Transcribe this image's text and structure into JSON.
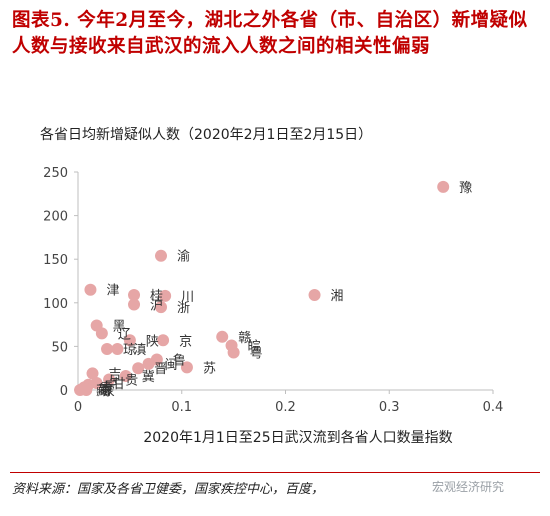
{
  "title": "图表5. 今年2月至今，湖北之外各省（市、自治区）新增疑似人数与接收来自武汉的流入人数之间的相关性偏弱",
  "source": "资料来源：国家及各省卫健委，国家疾控中心，百度，",
  "watermark": "宏观经济研究",
  "colors": {
    "title": "#c00000",
    "marker": "#e6a6a6",
    "axis": "#bfbfbf"
  },
  "chart_data": {
    "type": "scatter",
    "ylabel": "各省日均新增疑似人数（2020年2月1日至2月15日）",
    "xlabel": "2020年1月1日至25日武汉流到各省人口数量指数",
    "xlim": [
      0,
      0.4
    ],
    "ylim": [
      0,
      250
    ],
    "xticks": [
      "0",
      "0.1",
      "0.2",
      "0.3",
      "0.4"
    ],
    "yticks": [
      "0",
      "50",
      "100",
      "150",
      "200",
      "250"
    ],
    "grid": false,
    "points": [
      {
        "x": 0.352,
        "y": 233,
        "label": "豫"
      },
      {
        "x": 0.08,
        "y": 154,
        "label": "渝"
      },
      {
        "x": 0.228,
        "y": 109,
        "label": "湘"
      },
      {
        "x": 0.012,
        "y": 115,
        "label": "津"
      },
      {
        "x": 0.054,
        "y": 109,
        "label": "桂"
      },
      {
        "x": 0.084,
        "y": 108,
        "label": "川"
      },
      {
        "x": 0.054,
        "y": 98,
        "label": "沪"
      },
      {
        "x": 0.08,
        "y": 95,
        "label": "浙"
      },
      {
        "x": 0.018,
        "y": 74,
        "label": "黑"
      },
      {
        "x": 0.023,
        "y": 65,
        "label": "辽"
      },
      {
        "x": 0.05,
        "y": 57,
        "label": "陕"
      },
      {
        "x": 0.082,
        "y": 57,
        "label": "京"
      },
      {
        "x": 0.139,
        "y": 61,
        "label": "赣"
      },
      {
        "x": 0.148,
        "y": 51,
        "label": "皖"
      },
      {
        "x": 0.15,
        "y": 43,
        "label": "粤"
      },
      {
        "x": 0.028,
        "y": 47,
        "label": "琼"
      },
      {
        "x": 0.038,
        "y": 47,
        "label": "滇"
      },
      {
        "x": 0.076,
        "y": 35,
        "label": "鲁"
      },
      {
        "x": 0.068,
        "y": 30,
        "label": "闽"
      },
      {
        "x": 0.105,
        "y": 26,
        "label": "苏"
      },
      {
        "x": 0.058,
        "y": 25,
        "label": "晋"
      },
      {
        "x": 0.046,
        "y": 16,
        "label": "冀"
      },
      {
        "x": 0.014,
        "y": 19,
        "label": "吉"
      },
      {
        "x": 0.03,
        "y": 12,
        "label": "贵"
      },
      {
        "x": 0.018,
        "y": 8,
        "label": "甘"
      },
      {
        "x": 0.01,
        "y": 6,
        "label": "宁"
      },
      {
        "x": 0.006,
        "y": 3,
        "label": "青"
      },
      {
        "x": 0.004,
        "y": 1,
        "label": "新"
      },
      {
        "x": 0.002,
        "y": 0,
        "label": "藏"
      },
      {
        "x": 0.008,
        "y": 0,
        "label": "蒙"
      }
    ]
  }
}
